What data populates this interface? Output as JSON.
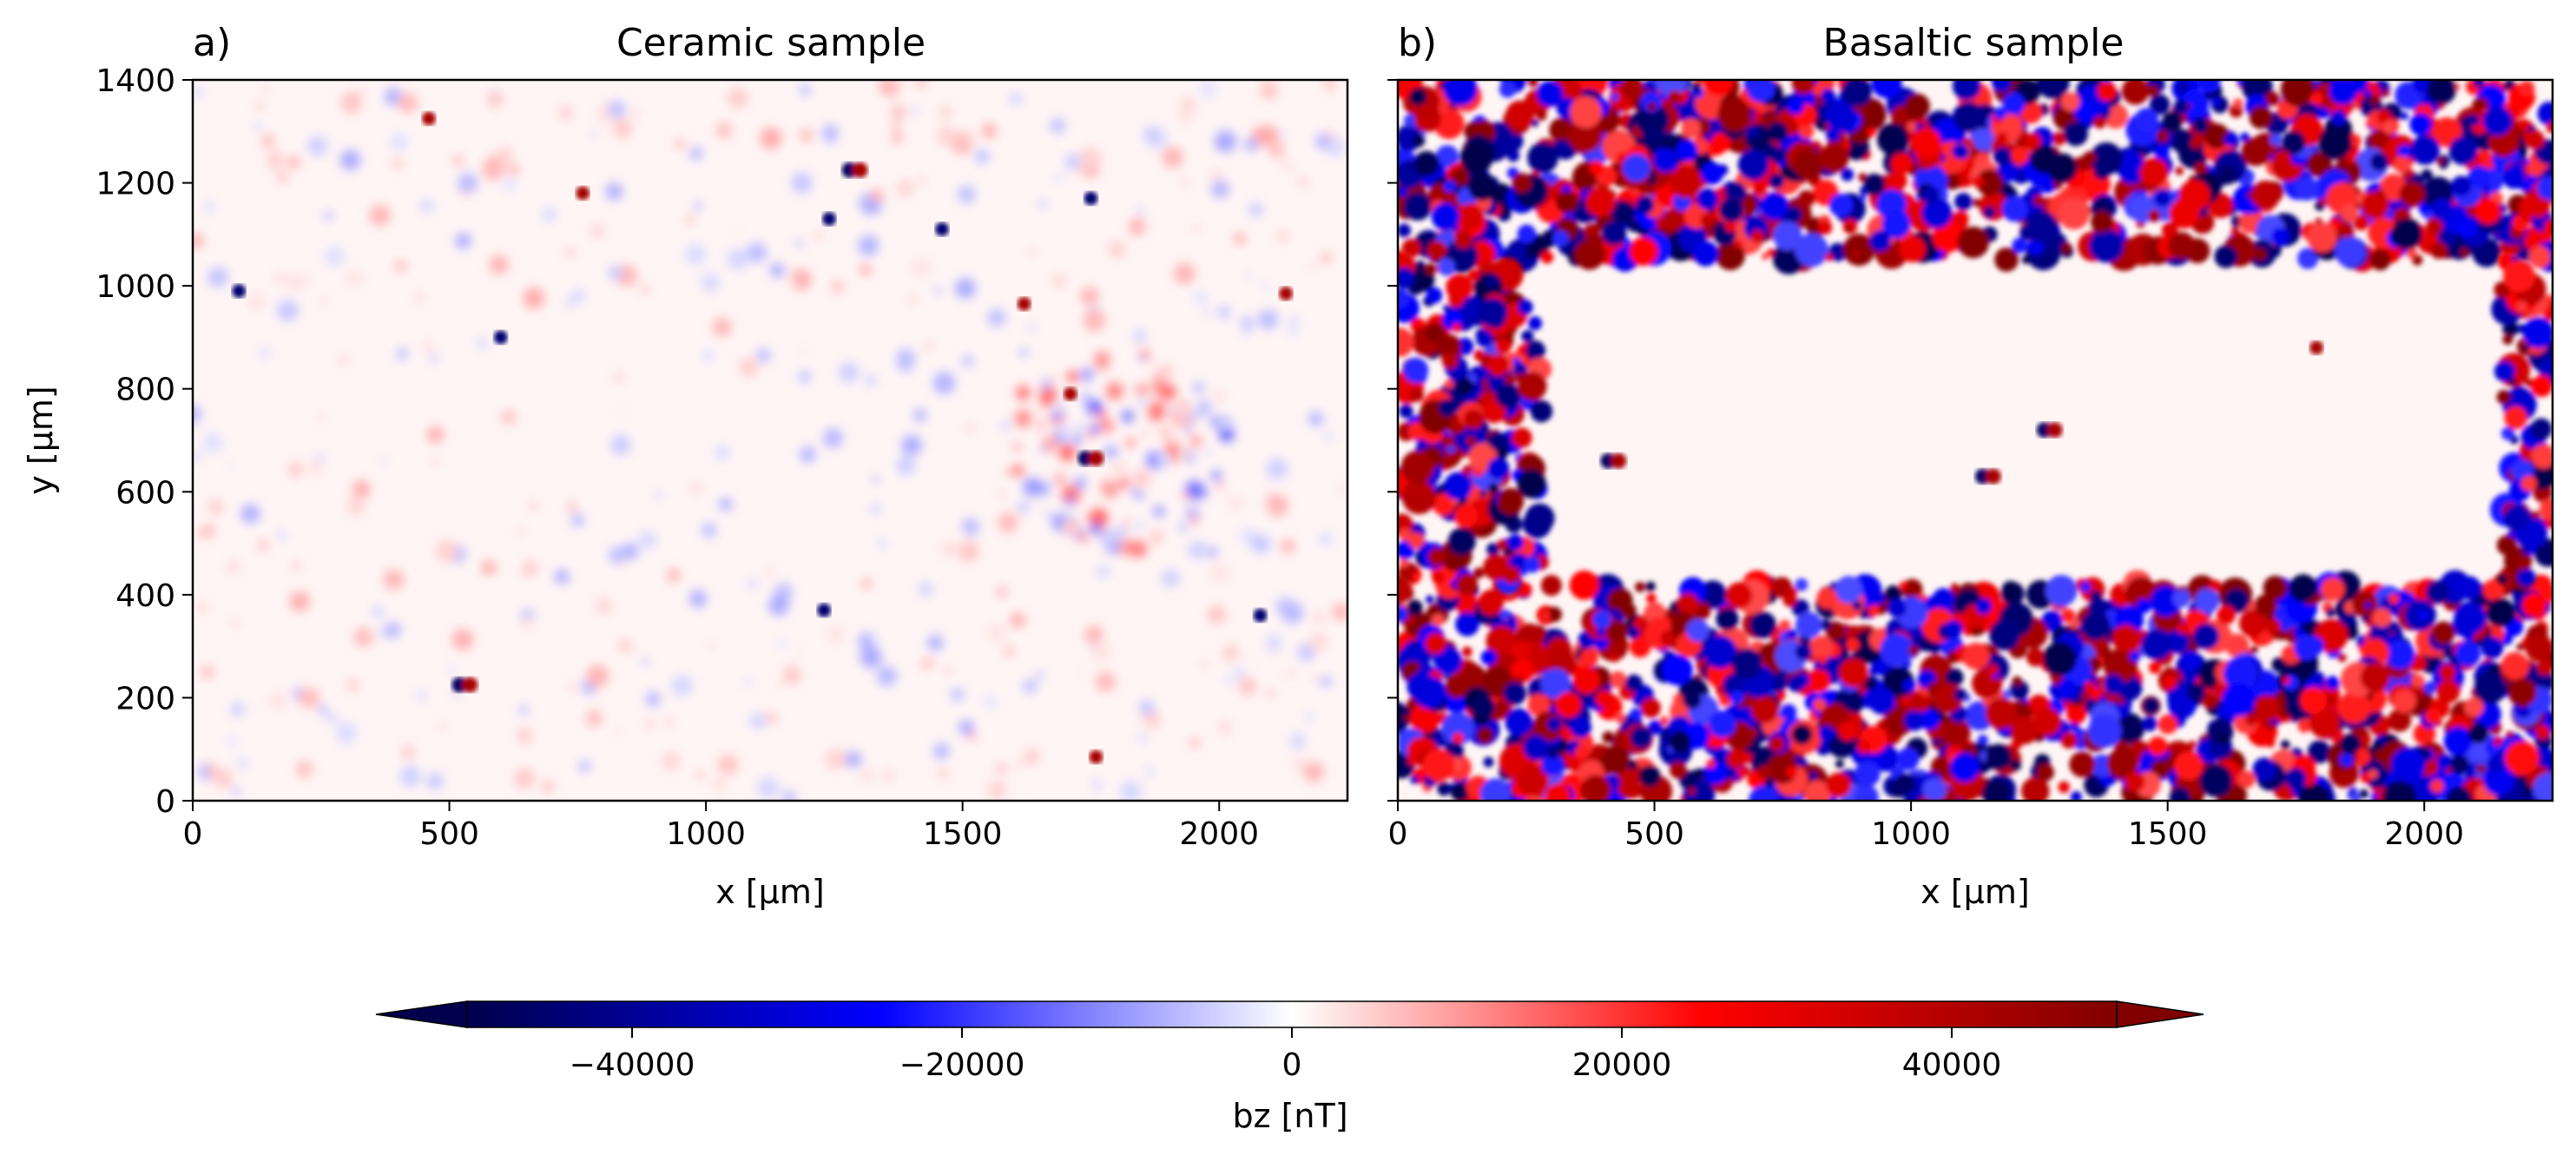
{
  "figure": {
    "colorbar": {
      "label": "bz [nT]",
      "colormap": "seismic",
      "range": [
        -50000,
        50000
      ],
      "ticks": [
        -40000,
        -20000,
        0,
        20000,
        40000
      ],
      "tick_labels": [
        "−40000",
        "−20000",
        "0",
        "20000",
        "40000"
      ],
      "extend": "both",
      "colors": {
        "low": "#00004c",
        "mid_low": "#0000ff",
        "center": "#ffffff",
        "mid_high": "#ff0000",
        "high": "#800000"
      }
    }
  },
  "chart_data": [
    {
      "type": "heatmap",
      "panel_label": "a)",
      "title": "Ceramic sample",
      "xlabel": "x [µm]",
      "ylabel": "y [µm]",
      "xlim": [
        0,
        2250
      ],
      "ylim": [
        0,
        1400
      ],
      "xticks": [
        0,
        500,
        1000,
        1500,
        2000
      ],
      "xtick_labels": [
        "0",
        "500",
        "1000",
        "1500",
        "2000"
      ],
      "yticks": [
        0,
        200,
        400,
        600,
        800,
        1000,
        1200,
        1400
      ],
      "ytick_labels": [
        "0",
        "200",
        "400",
        "600",
        "800",
        "1000",
        "1200",
        "1400"
      ],
      "field": "bz",
      "units": "nT",
      "background_value": 0,
      "features": [
        {
          "kind": "region",
          "x": [
            1550,
            2050
          ],
          "y": [
            480,
            870
          ],
          "dominant_sign": "mixed"
        },
        {
          "kind": "dipole",
          "x": 1290,
          "y": 1225,
          "sign": "negative-positive"
        },
        {
          "kind": "dipole",
          "x": 460,
          "y": 1325,
          "sign": "positive"
        },
        {
          "kind": "dipole",
          "x": 530,
          "y": 225,
          "sign": "negative-positive"
        },
        {
          "kind": "dipole",
          "x": 600,
          "y": 900,
          "sign": "negative"
        },
        {
          "kind": "dipole",
          "x": 1750,
          "y": 665,
          "sign": "negative-positive"
        },
        {
          "kind": "dipole",
          "x": 1620,
          "y": 965,
          "sign": "positive"
        },
        {
          "kind": "dipole",
          "x": 1710,
          "y": 790,
          "sign": "positive"
        },
        {
          "kind": "dipole",
          "x": 1750,
          "y": 1170,
          "sign": "negative"
        },
        {
          "kind": "dipole",
          "x": 90,
          "y": 990,
          "sign": "negative"
        },
        {
          "kind": "dipole",
          "x": 760,
          "y": 1180,
          "sign": "positive"
        },
        {
          "kind": "dipole",
          "x": 2130,
          "y": 985,
          "sign": "positive"
        },
        {
          "kind": "dipole",
          "x": 1460,
          "y": 1110,
          "sign": "negative"
        },
        {
          "kind": "dipole",
          "x": 1240,
          "y": 1130,
          "sign": "negative"
        },
        {
          "kind": "dipole",
          "x": 1760,
          "y": 85,
          "sign": "positive"
        },
        {
          "kind": "dipole",
          "x": 2080,
          "y": 360,
          "sign": "negative"
        },
        {
          "kind": "dipole",
          "x": 1230,
          "y": 370,
          "sign": "negative"
        }
      ]
    },
    {
      "type": "heatmap",
      "panel_label": "b)",
      "title": "Basaltic sample",
      "xlabel": "x [µm]",
      "ylabel": "",
      "xlim": [
        0,
        2250
      ],
      "ylim": [
        0,
        1400
      ],
      "xticks": [
        0,
        500,
        1000,
        1500,
        2000
      ],
      "xtick_labels": [
        "0",
        "500",
        "1000",
        "1500",
        "2000"
      ],
      "yticks": [
        0,
        200,
        400,
        600,
        800,
        1000,
        1200,
        1400
      ],
      "ytick_labels": [],
      "field": "bz",
      "units": "nT",
      "background_value": 0,
      "features": [
        {
          "kind": "region",
          "x": [
            0,
            2250
          ],
          "y": [
            1050,
            1400
          ],
          "dominant_sign": "mixed-strong"
        },
        {
          "kind": "region",
          "x": [
            0,
            2250
          ],
          "y": [
            0,
            420
          ],
          "dominant_sign": "mixed-strong"
        },
        {
          "kind": "region",
          "x": [
            0,
            280
          ],
          "y": [
            420,
            1050
          ],
          "dominant_sign": "mixed-strong"
        },
        {
          "kind": "region",
          "x": [
            2150,
            2250
          ],
          "y": [
            420,
            1050
          ],
          "dominant_sign": "mixed-strong"
        },
        {
          "kind": "dipole",
          "x": 1270,
          "y": 720,
          "sign": "negative-positive"
        },
        {
          "kind": "dipole",
          "x": 1150,
          "y": 630,
          "sign": "negative-positive"
        },
        {
          "kind": "dipole",
          "x": 1790,
          "y": 880,
          "sign": "positive"
        },
        {
          "kind": "dipole",
          "x": 420,
          "y": 660,
          "sign": "negative-positive"
        }
      ]
    }
  ]
}
